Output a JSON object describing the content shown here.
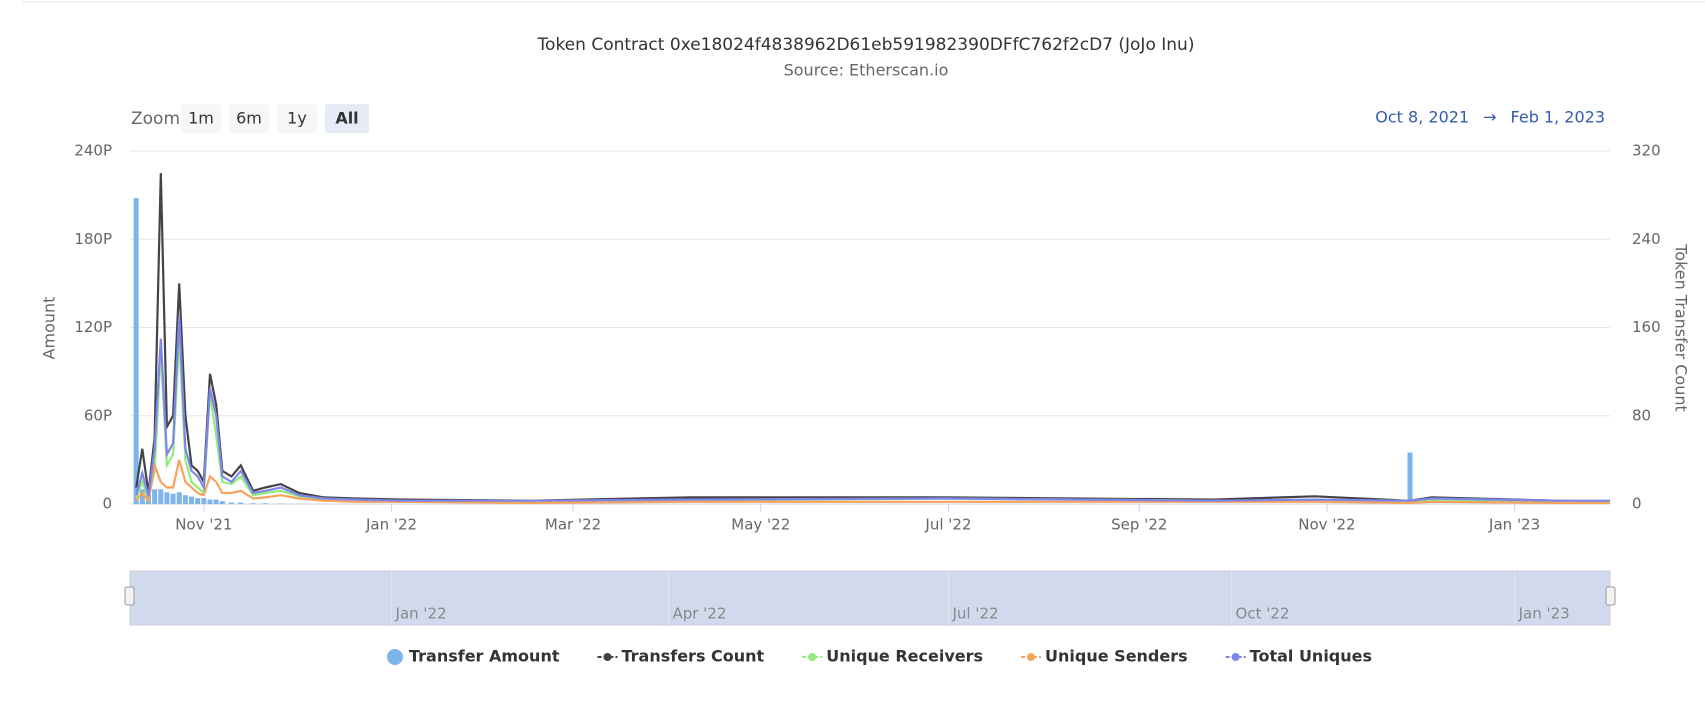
{
  "chart_data": {
    "type": "line",
    "title": "Token Contract 0xe18024f4838962D61eb591982390DFfC762f2cD7 (JoJo Inu)",
    "subtitle": "Source: Etherscan.io",
    "zoom_label": "Zoom",
    "zoom_buttons": [
      "1m",
      "6m",
      "1y",
      "All"
    ],
    "range": {
      "from": "Oct 8, 2021",
      "arrow": "→",
      "to": "Feb 1, 2023"
    },
    "y_title": "Amount",
    "y2_title": "Token Transfer Count",
    "xlim": [
      "2021-10-08",
      "2023-02-01"
    ],
    "xticks": [
      {
        "value": "2021-11-01",
        "label": "Nov '21"
      },
      {
        "value": "2022-01-01",
        "label": "Jan '22"
      },
      {
        "value": "2022-03-01",
        "label": "Mar '22"
      },
      {
        "value": "2022-05-01",
        "label": "May '22"
      },
      {
        "value": "2022-07-01",
        "label": "Jul '22"
      },
      {
        "value": "2022-09-01",
        "label": "Sep '22"
      },
      {
        "value": "2022-11-01",
        "label": "Nov '22"
      },
      {
        "value": "2023-01-01",
        "label": "Jan '23"
      }
    ],
    "navigator_ticks": [
      {
        "value": "2022-01-01",
        "label": "Jan '22"
      },
      {
        "value": "2022-04-01",
        "label": "Apr '22"
      },
      {
        "value": "2022-07-01",
        "label": "Jul '22"
      },
      {
        "value": "2022-10-01",
        "label": "Oct '22"
      },
      {
        "value": "2023-01-01",
        "label": "Jan '23"
      }
    ],
    "ylim": [
      0,
      240
    ],
    "yticks": [
      0,
      {
        "value": 60,
        "label": "60P"
      },
      {
        "value": 120,
        "label": "120P"
      },
      {
        "value": 180,
        "label": "180P"
      },
      {
        "value": 240,
        "label": "240P"
      }
    ],
    "y2lim": [
      0,
      320
    ],
    "y2ticks": [
      0,
      80,
      160,
      240,
      320
    ],
    "grid": true,
    "x": [
      "2021-10-10",
      "2021-10-12",
      "2021-10-14",
      "2021-10-16",
      "2021-10-18",
      "2021-10-20",
      "2021-10-22",
      "2021-10-24",
      "2021-10-26",
      "2021-10-28",
      "2021-10-30",
      "2021-11-01",
      "2021-11-03",
      "2021-11-05",
      "2021-11-07",
      "2021-11-10",
      "2021-11-13",
      "2021-11-17",
      "2021-11-21",
      "2021-11-26",
      "2021-12-02",
      "2021-12-10",
      "2021-12-20",
      "2022-01-05",
      "2022-02-15",
      "2022-04-08",
      "2022-06-29",
      "2022-09-25",
      "2022-10-28",
      "2022-11-27",
      "2022-11-28",
      "2022-12-05",
      "2023-01-15",
      "2023-02-01"
    ],
    "series": [
      {
        "name": "Transfer Amount",
        "type": "column",
        "color": "#7cb5ec",
        "axis": "y",
        "values": [
          208,
          10,
          8,
          10,
          10,
          8,
          7,
          8,
          6,
          5,
          4,
          4,
          3,
          3,
          2,
          1,
          1,
          0.5,
          0.5,
          0.3,
          0.2,
          0.1,
          0.1,
          0,
          0,
          0,
          0,
          0,
          0,
          0,
          35,
          0,
          0,
          0
        ]
      },
      {
        "name": "Transfers Count",
        "type": "line",
        "color": "#434348",
        "axis": "y2",
        "values": [
          15,
          50,
          10,
          60,
          300,
          70,
          80,
          200,
          80,
          35,
          30,
          20,
          118,
          90,
          30,
          25,
          35,
          12,
          15,
          18,
          10,
          6,
          5,
          4,
          3,
          6,
          6,
          4,
          7,
          3,
          3,
          6,
          3,
          2
        ]
      },
      {
        "name": "Unique Receivers",
        "type": "line",
        "color": "#90ed7d",
        "axis": "y2",
        "values": [
          5,
          20,
          5,
          30,
          140,
          35,
          45,
          150,
          40,
          20,
          15,
          10,
          100,
          62,
          20,
          18,
          25,
          8,
          10,
          12,
          7,
          4,
          3,
          2,
          2,
          3,
          5,
          3,
          3,
          2,
          2,
          3,
          2,
          2
        ]
      },
      {
        "name": "Unique Senders",
        "type": "line",
        "color": "#f7a35c",
        "axis": "y2",
        "values": [
          3,
          10,
          3,
          35,
          20,
          15,
          15,
          40,
          20,
          15,
          10,
          8,
          25,
          20,
          10,
          10,
          12,
          5,
          6,
          8,
          5,
          3,
          2,
          2,
          1,
          2,
          2,
          2,
          2,
          1,
          1,
          2,
          1,
          1
        ]
      },
      {
        "name": "Total Uniques",
        "type": "line",
        "color": "#8085e9",
        "axis": "y2",
        "values": [
          8,
          28,
          7,
          50,
          150,
          45,
          55,
          170,
          50,
          30,
          25,
          15,
          105,
          80,
          25,
          20,
          30,
          10,
          12,
          15,
          8,
          5,
          4,
          3,
          3,
          4,
          5,
          3,
          4,
          3,
          3,
          5,
          3,
          3
        ]
      }
    ]
  }
}
